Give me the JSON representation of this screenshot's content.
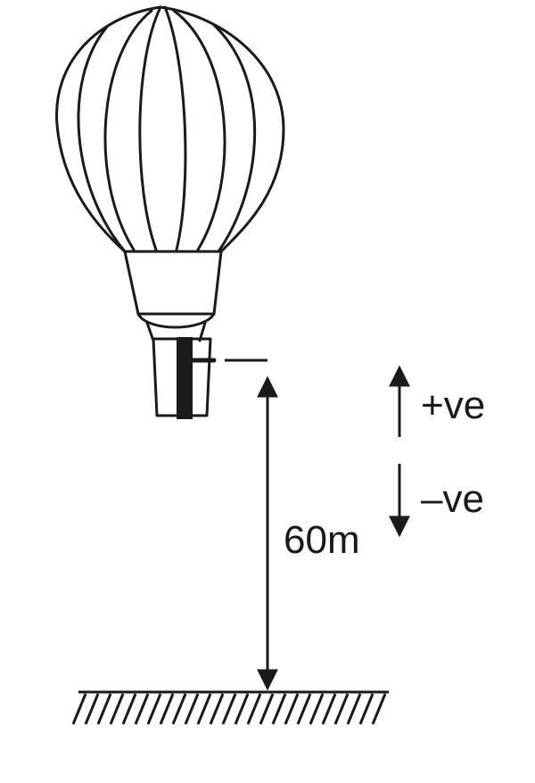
{
  "diagram": {
    "height_label": "60m",
    "positive_label": "+ve",
    "negative_label": "–ve",
    "objects": [
      "hot-air-balloon",
      "ground"
    ],
    "ink_color": "#1a1a1a",
    "background_color": "#ffffff"
  }
}
